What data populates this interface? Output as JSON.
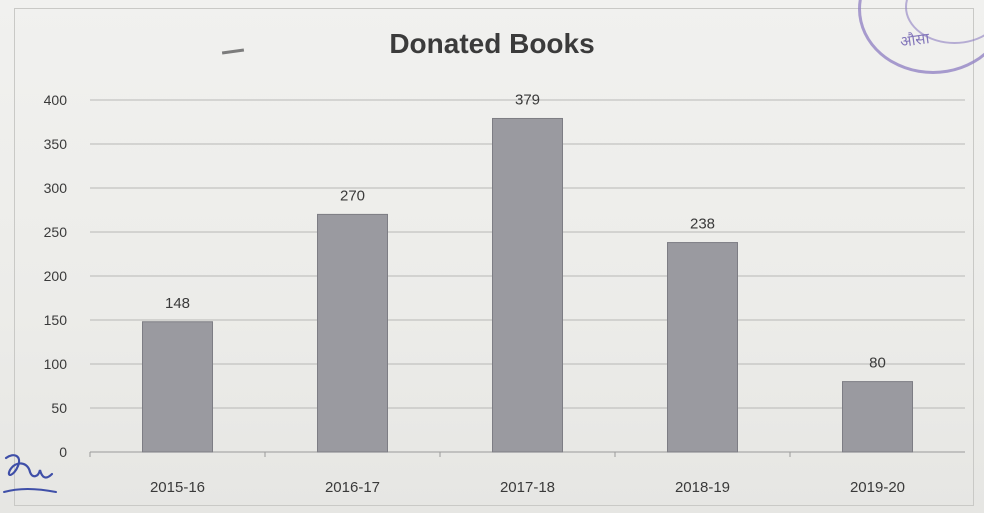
{
  "chart_data": {
    "type": "bar",
    "title": "Donated Books",
    "categories": [
      "2015-16",
      "2016-17",
      "2017-18",
      "2018-19",
      "2019-20"
    ],
    "values": [
      148,
      270,
      379,
      238,
      80
    ],
    "data_labels": [
      "148",
      "270",
      "379",
      "238",
      "80"
    ],
    "ylim": [
      0,
      400
    ],
    "yticks": [
      0,
      50,
      100,
      150,
      200,
      250,
      300,
      350,
      400
    ],
    "xlabel": "",
    "ylabel": "",
    "grid": true,
    "legend": "none",
    "bar_color": "#9a9aa0"
  },
  "stamp": {
    "text": "औसा"
  }
}
